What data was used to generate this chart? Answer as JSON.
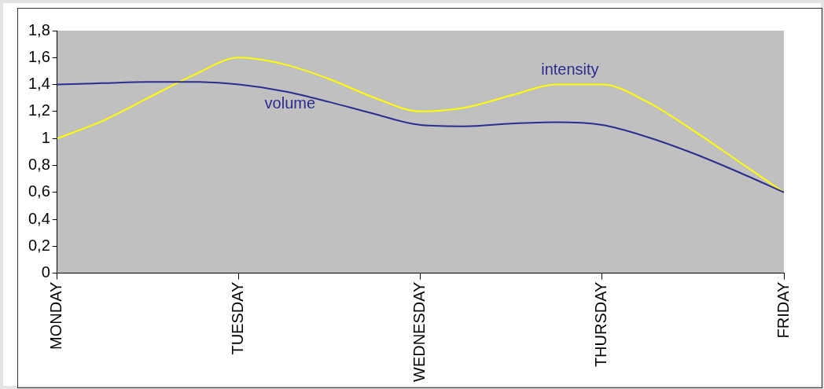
{
  "chart_data": {
    "type": "line",
    "categories": [
      "MONDAY",
      null,
      null,
      null,
      "TUESDAY",
      null,
      null,
      null,
      "WEDNESDAY",
      null,
      null,
      null,
      "THURSDAY",
      null,
      null,
      null,
      "FRIDAY"
    ],
    "ylim": [
      0,
      1.8
    ],
    "yticks": [
      0,
      {
        "value": 0.2,
        "label": "0,2"
      },
      {
        "value": 0.4,
        "label": "0,4"
      },
      {
        "value": 0.6,
        "label": "0,6"
      },
      {
        "value": 0.8,
        "label": "0,8"
      },
      1,
      {
        "value": 1.2,
        "label": "1,2"
      },
      {
        "value": 1.4,
        "label": "1,4"
      },
      {
        "value": 1.6,
        "label": "1,6"
      },
      {
        "value": 1.8,
        "label": "1,8"
      }
    ],
    "grid": false,
    "legend": false,
    "marker": "none",
    "line_style": "solid",
    "series": [
      {
        "name": "volume",
        "color": "#2b2b90",
        "values": [
          1.4,
          1.41,
          1.42,
          1.42,
          1.4,
          1.35,
          1.27,
          1.18,
          1.1,
          1.09,
          1.11,
          1.12,
          1.1,
          1.01,
          0.89,
          0.75,
          0.6
        ]
      },
      {
        "name": "intensity",
        "color": "#ffff00",
        "values": [
          1,
          1.13,
          1.3,
          1.47,
          1.6,
          1.55,
          1.44,
          1.3,
          1.2,
          1.23,
          1.32,
          1.4,
          1.4,
          1.27,
          1.06,
          0.83,
          0.6
        ]
      }
    ]
  }
}
